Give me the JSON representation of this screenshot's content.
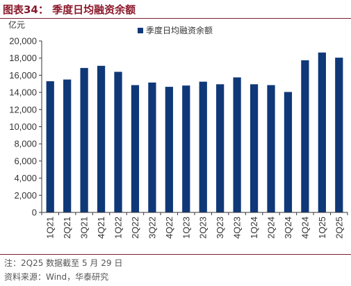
{
  "header": {
    "title": "图表34：  季度日均融资余额"
  },
  "chart_data": {
    "type": "bar",
    "unit_label": "亿元",
    "categories": [
      "1Q21",
      "2Q21",
      "3Q21",
      "4Q21",
      "1Q22",
      "2Q22",
      "3Q22",
      "4Q22",
      "1Q23",
      "2Q23",
      "3Q23",
      "4Q23",
      "1Q24",
      "2Q24",
      "3Q24",
      "4Q24",
      "1Q25",
      "2Q25"
    ],
    "series": [
      {
        "name": "季度日均融资余额",
        "values": [
          15300,
          15500,
          16850,
          17100,
          16400,
          14850,
          15150,
          14650,
          14800,
          15250,
          14950,
          15750,
          14950,
          14850,
          14050,
          17750,
          18650,
          18050
        ]
      }
    ],
    "ylim": [
      0,
      20000
    ],
    "yticks": [
      0,
      2000,
      4000,
      6000,
      8000,
      10000,
      12000,
      14000,
      16000,
      18000,
      20000
    ],
    "ytick_labels": [
      "0",
      "2,000",
      "4,000",
      "6,000",
      "8,000",
      "10,000",
      "12,000",
      "14,000",
      "16,000",
      "18,000",
      "20,000"
    ],
    "grid": false,
    "legend_position": "top",
    "colors": {
      "bar": "#0f3878",
      "axis": "#333333"
    }
  },
  "notes": {
    "note": "注：2Q25 数据截至 5 月 29 日",
    "source": "资料来源：Wind，华泰研究"
  }
}
